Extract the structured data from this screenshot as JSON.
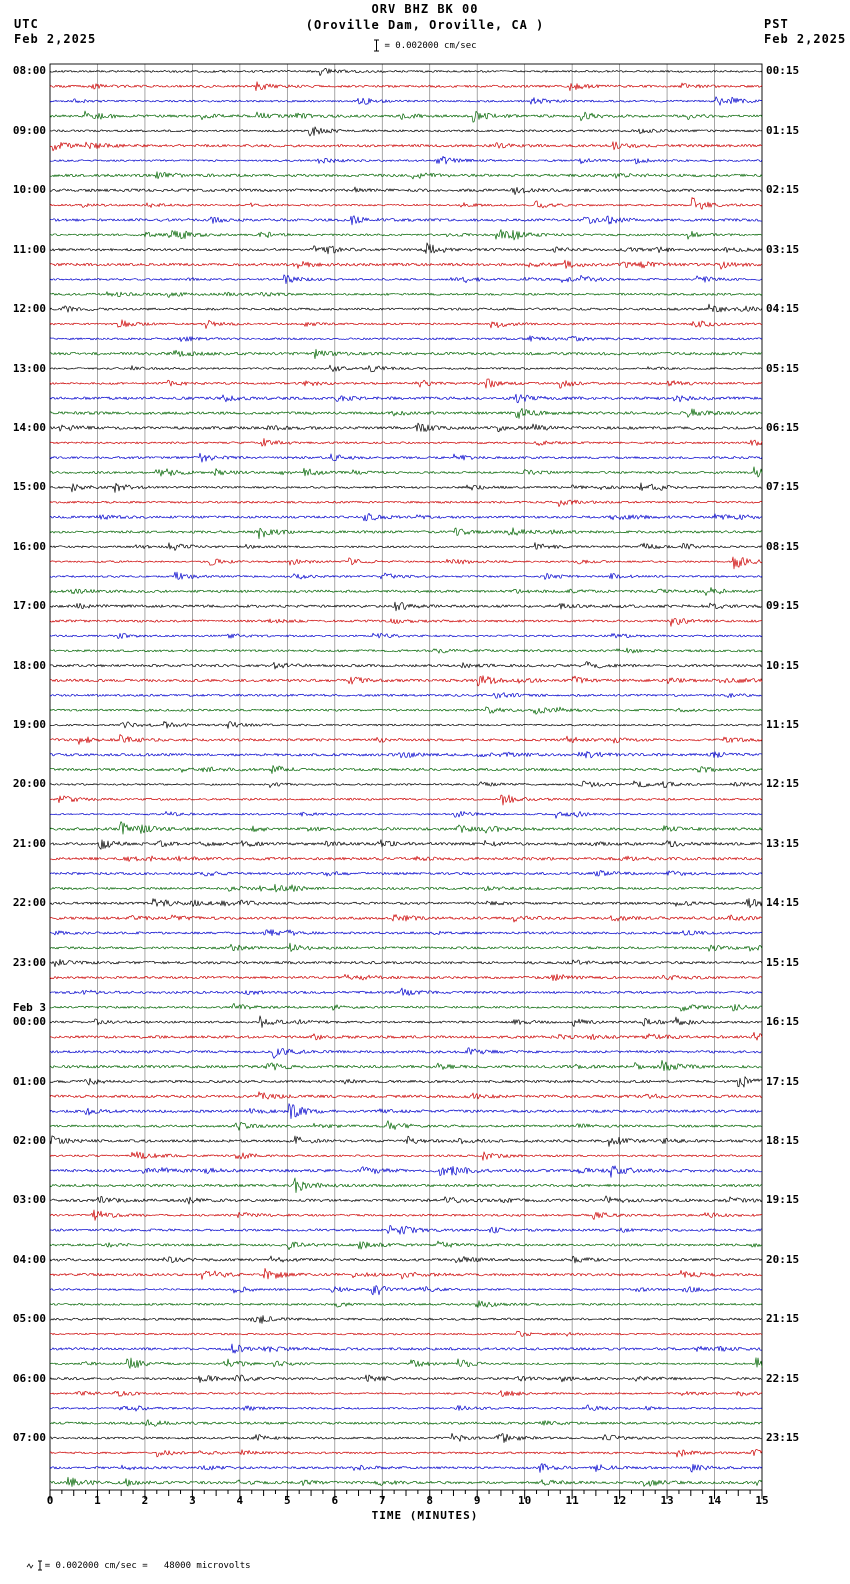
{
  "header": {
    "title": "ORV BHZ BK 00",
    "subtitle": "(Oroville Dam, Oroville, CA )",
    "left_timezone": "UTC",
    "left_date": "Feb 2,2025",
    "right_timezone": "PST",
    "right_date": "Feb 2,2025",
    "scale_label": "= 0.002000 cm/sec"
  },
  "axis": {
    "xlabel": "TIME (MINUTES)"
  },
  "footer": {
    "scale_note": "= 0.002000 cm/sec =   48000 microvolts"
  },
  "chart_data": {
    "type": "line",
    "title": "ORV BHZ BK 00 (Oroville Dam, Oroville, CA) 24-hour helicorder",
    "description": "Webicorder strip chart: 96 trace rows of 15 minutes each (4 rows per hour, colors cycling black/red/blue/green), showing low-amplitude ambient seismic noise with small bursts; no large events.",
    "x_range_minutes": [
      0,
      15
    ],
    "x_ticks": [
      "0",
      "1",
      "2",
      "3",
      "4",
      "5",
      "6",
      "7",
      "8",
      "9",
      "10",
      "11",
      "12",
      "13",
      "14",
      "15"
    ],
    "rows": 96,
    "rows_per_hour": 4,
    "minutes_per_row": 15,
    "amplitude_scale": "0.002000 cm/sec = 48000 microvolts",
    "utc_hour_labels": [
      "08:00",
      "09:00",
      "10:00",
      "11:00",
      "12:00",
      "13:00",
      "14:00",
      "15:00",
      "16:00",
      "17:00",
      "18:00",
      "19:00",
      "20:00",
      "21:00",
      "22:00",
      "23:00",
      "00:00",
      "01:00",
      "02:00",
      "03:00",
      "04:00",
      "05:00",
      "06:00",
      "07:00"
    ],
    "pst_hour_labels": [
      "00:15",
      "01:15",
      "02:15",
      "03:15",
      "04:15",
      "05:15",
      "06:15",
      "07:15",
      "08:15",
      "09:15",
      "10:15",
      "11:15",
      "12:15",
      "13:15",
      "14:15",
      "15:15",
      "16:15",
      "17:15",
      "18:15",
      "19:15",
      "20:15",
      "21:15",
      "22:15",
      "23:15"
    ],
    "date_marker": {
      "row_hour_index": 16,
      "label": "Feb 3"
    },
    "trace_colors": [
      "#000000",
      "#cc0000",
      "#0000cc",
      "#006400"
    ],
    "grid_color": "#808080",
    "noise_seed": 20250202
  }
}
